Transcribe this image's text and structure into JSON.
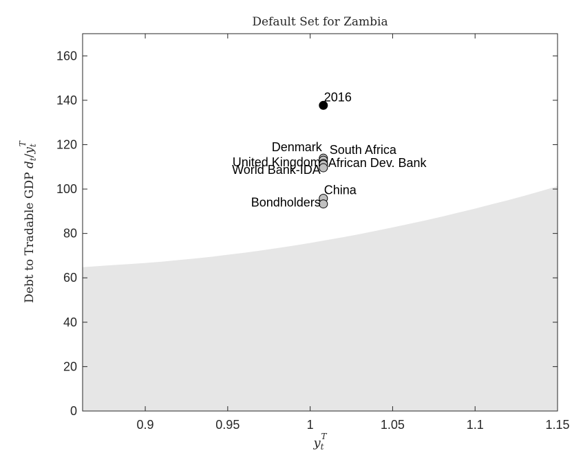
{
  "chart_data": {
    "type": "scatter",
    "title": "Default Set for Zambia",
    "xlabel": {
      "base": "y",
      "sub": "t",
      "sup": "T"
    },
    "ylabel": {
      "text": "Debt to Tradable GDP ",
      "math": {
        "num": "d",
        "num_sub": "t",
        "slash": "/",
        "den": "y",
        "den_sub": "t",
        "den_sup": "T"
      }
    },
    "xlim": [
      0.862,
      1.15
    ],
    "ylim": [
      0,
      170
    ],
    "xticks": [
      0.9,
      0.95,
      1.0,
      1.05,
      1.1,
      1.15
    ],
    "xtick_labels": [
      "0.9",
      "0.95",
      "1",
      "1.05",
      "1.1",
      "1.15"
    ],
    "yticks": [
      0,
      20,
      40,
      60,
      80,
      100,
      120,
      140,
      160
    ],
    "ytick_labels": [
      "0",
      "20",
      "40",
      "60",
      "80",
      "100",
      "120",
      "140",
      "160"
    ],
    "grid": false,
    "default_region": {
      "color": "#e6e6e6",
      "x": [
        0.862,
        0.87,
        0.88,
        0.89,
        0.9,
        0.91,
        0.92,
        0.93,
        0.94,
        0.95,
        0.96,
        0.97,
        0.98,
        0.99,
        1.0,
        1.01,
        1.02,
        1.03,
        1.04,
        1.05,
        1.06,
        1.07,
        1.08,
        1.09,
        1.1,
        1.11,
        1.12,
        1.13,
        1.14,
        1.15
      ],
      "y": [
        64.8,
        65.2,
        65.7,
        66.2,
        66.7,
        67.3,
        68.0,
        68.7,
        69.5,
        70.4,
        71.3,
        72.3,
        73.4,
        74.5,
        75.7,
        77.0,
        78.3,
        79.7,
        81.2,
        82.7,
        84.3,
        85.9,
        87.6,
        89.4,
        91.2,
        93.1,
        95.0,
        97.0,
        99.1,
        101.3
      ]
    },
    "points": [
      {
        "label": "2016",
        "x": 1.008,
        "y": 137.7,
        "fill": "#000000",
        "label_pos": "above-right"
      },
      {
        "label": "South Africa",
        "x": 1.008,
        "y": 113.9,
        "fill": "#c0c0c0",
        "label_pos": "right-high"
      },
      {
        "label": "Denmark",
        "x": 1.008,
        "y": 113.0,
        "fill": "#c0c0c0",
        "label_pos": "above-left"
      },
      {
        "label": "United Kingdom",
        "x": 1.008,
        "y": 111.5,
        "fill": "#c0c0c0",
        "label_pos": "left"
      },
      {
        "label": "African Dev. Bank",
        "x": 1.008,
        "y": 111.1,
        "fill": "#c0c0c0",
        "label_pos": "right"
      },
      {
        "label": "World Bank-IDA",
        "x": 1.008,
        "y": 109.6,
        "fill": "#c0c0c0",
        "label_pos": "left-low"
      },
      {
        "label": "China",
        "x": 1.008,
        "y": 95.8,
        "fill": "#c0c0c0",
        "label_pos": "above-right"
      },
      {
        "label": "Bondholders",
        "x": 1.008,
        "y": 93.3,
        "fill": "#c0c0c0",
        "label_pos": "left"
      }
    ]
  }
}
